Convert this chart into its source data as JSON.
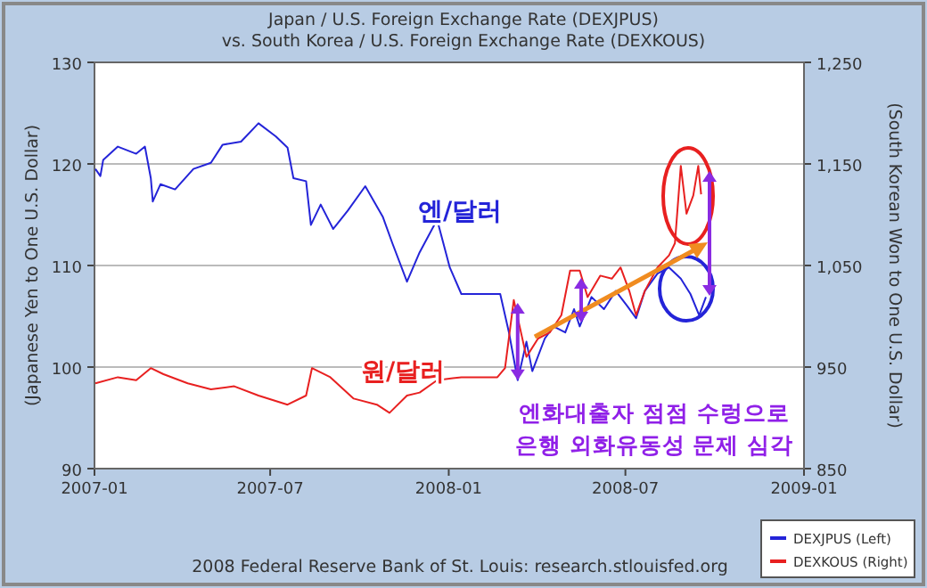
{
  "chart_data": {
    "type": "line",
    "title": "Japan / U.S. Foreign Exchange Rate (DEXJPUS)",
    "subtitle": "vs.  South Korea / U.S. Foreign Exchange Rate (DEXKOUS)",
    "ylabel": "(Japanese Yen to One U.S. Dollar)",
    "y2label": "(South Korean Won to One U.S. Dollar)",
    "xlim": [
      "2007-01-01",
      "2009-01-01"
    ],
    "xticks": [
      {
        "value": "2007-01-01",
        "label": "2007-01"
      },
      {
        "value": "2007-07-01",
        "label": "2007-07"
      },
      {
        "value": "2008-01-01",
        "label": "2008-01"
      },
      {
        "value": "2008-07-01",
        "label": "2008-07"
      },
      {
        "value": "2009-01-01",
        "label": "2009-01"
      }
    ],
    "ylim": [
      90,
      130
    ],
    "yticks": [
      90,
      100,
      110,
      120,
      130
    ],
    "y2lim": [
      850,
      1250
    ],
    "y2ticks": [
      850,
      950,
      {
        "value": 1050,
        "label": "1,050"
      },
      {
        "value": 1150,
        "label": "1,150"
      },
      {
        "value": 1250,
        "label": "1,250"
      }
    ],
    "grid": "y",
    "legend": "bottom right",
    "line_style": "solid",
    "marker": "none",
    "series": [
      {
        "name": "DEXJPUS (Left)",
        "color": "#2424d8",
        "x": [
          "2007-01-02",
          "2007-01-07",
          "2007-01-10",
          "2007-01-25",
          "2007-02-13",
          "2007-02-22",
          "2007-02-28",
          "2007-03-02",
          "2007-03-10",
          "2007-03-25",
          "2007-04-13",
          "2007-05-01",
          "2007-05-13",
          "2007-06-01",
          "2007-06-19",
          "2007-07-07",
          "2007-07-19",
          "2007-07-25",
          "2007-08-07",
          "2007-08-12",
          "2007-08-22",
          "2007-09-04",
          "2007-09-19",
          "2007-10-07",
          "2007-10-25",
          "2007-11-04",
          "2007-11-19",
          "2007-12-02",
          "2007-12-20",
          "2008-01-02",
          "2008-01-14",
          "2008-02-02",
          "2008-02-23",
          "2008-03-03",
          "2008-03-12",
          "2008-03-21",
          "2008-03-27",
          "2008-04-09",
          "2008-04-18",
          "2008-04-30",
          "2008-05-09",
          "2008-05-15",
          "2008-05-27",
          "2008-06-09",
          "2008-06-21",
          "2008-07-03",
          "2008-07-12",
          "2008-07-21",
          "2008-08-03",
          "2008-08-15",
          "2008-08-27",
          "2008-09-06",
          "2008-09-15",
          "2008-09-22"
        ],
        "values": [
          119.5,
          118.8,
          120.4,
          121.7,
          121.0,
          121.7,
          118.6,
          116.3,
          118.0,
          117.5,
          119.5,
          120.1,
          121.9,
          122.2,
          124.0,
          122.7,
          121.6,
          118.6,
          118.3,
          114.0,
          116.0,
          113.6,
          115.4,
          117.8,
          114.8,
          112.2,
          108.4,
          111.3,
          114.5,
          109.8,
          107.2,
          107.2,
          107.2,
          103.4,
          98.7,
          102.5,
          99.6,
          102.8,
          104.0,
          103.4,
          105.7,
          104.0,
          106.9,
          105.7,
          107.5,
          106.0,
          104.8,
          107.5,
          109.2,
          109.8,
          108.7,
          107.2,
          105.1,
          106.9
        ]
      },
      {
        "name": "DEXKOUS (Right)",
        "color": "#e82020",
        "axis": "y2",
        "x": [
          "2007-01-02",
          "2007-01-25",
          "2007-02-13",
          "2007-02-28",
          "2007-03-13",
          "2007-04-07",
          "2007-05-01",
          "2007-05-25",
          "2007-06-19",
          "2007-07-19",
          "2007-08-07",
          "2007-08-13",
          "2007-09-01",
          "2007-09-25",
          "2007-10-19",
          "2007-11-01",
          "2007-11-19",
          "2007-12-02",
          "2007-12-20",
          "2008-01-14",
          "2008-02-20",
          "2008-02-28",
          "2008-03-08",
          "2008-03-14",
          "2008-03-21",
          "2008-04-02",
          "2008-04-14",
          "2008-04-26",
          "2008-05-05",
          "2008-05-15",
          "2008-05-23",
          "2008-06-05",
          "2008-06-17",
          "2008-06-26",
          "2008-07-05",
          "2008-07-12",
          "2008-07-21",
          "2008-08-03",
          "2008-08-15",
          "2008-08-21",
          "2008-08-27",
          "2008-09-02",
          "2008-09-09",
          "2008-09-14",
          "2008-09-17"
        ],
        "values": [
          934,
          940,
          937,
          949,
          943,
          934,
          928,
          931,
          922,
          913,
          922,
          949,
          940,
          919,
          913,
          905,
          922,
          925,
          937,
          940,
          940,
          949,
          1016,
          990,
          960,
          978,
          984,
          1001,
          1045,
          1045,
          1019,
          1040,
          1037,
          1048,
          1025,
          1001,
          1025,
          1048,
          1060,
          1072,
          1148,
          1101,
          1119,
          1148,
          1120
        ]
      }
    ],
    "annotations": [
      "엔/달러",
      "원/달러",
      {
        "text": "엔화대출자 점점 수렁으로\n은행 외화유동성 문제 심각",
        "x": "2008-03-12",
        "y": 98.7
      },
      "2008 Federal Reserve Bank of St. Louis: research.stlouisfed.org"
    ]
  }
}
